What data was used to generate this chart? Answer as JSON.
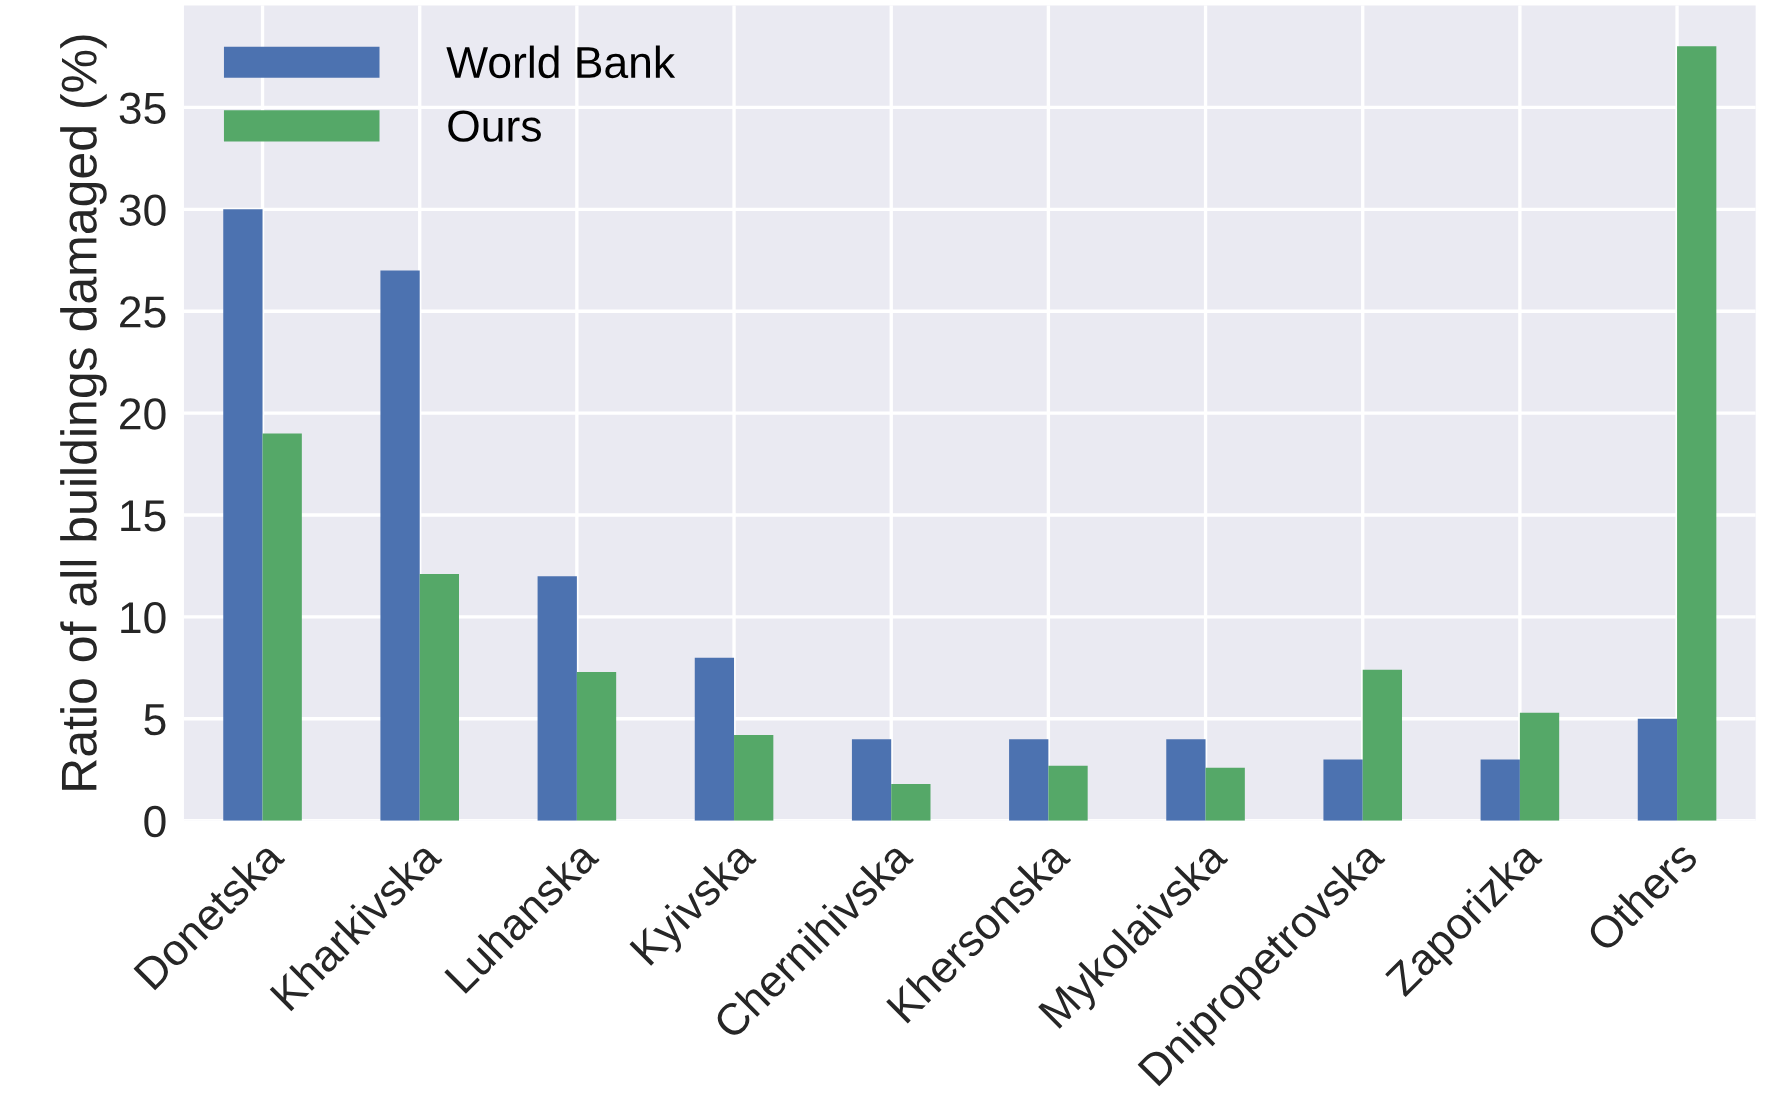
{
  "chart_data": {
    "type": "bar",
    "ylabel": "Ratio of all buildings damaged (%)",
    "categories": [
      "Donetska",
      "Kharkivska",
      "Luhanska",
      "Kyivska",
      "Chernihivska",
      "Khersonska",
      "Mykolaivska",
      "Dnipropetrovska",
      "Zaporizka",
      "Others"
    ],
    "series": [
      {
        "name": "World Bank",
        "color": "#4c72b0",
        "values": [
          30,
          27,
          12,
          8,
          4,
          4,
          4,
          3,
          3,
          5
        ]
      },
      {
        "name": "Ours",
        "color": "#55a868",
        "values": [
          19,
          12.1,
          7.3,
          4.2,
          1.8,
          2.7,
          2.6,
          7.4,
          5.3,
          38
        ]
      }
    ],
    "ylim": [
      0,
      40
    ],
    "yticks": [
      0,
      5,
      10,
      15,
      20,
      25,
      30,
      35
    ],
    "grid": true,
    "legend": "top left"
  }
}
